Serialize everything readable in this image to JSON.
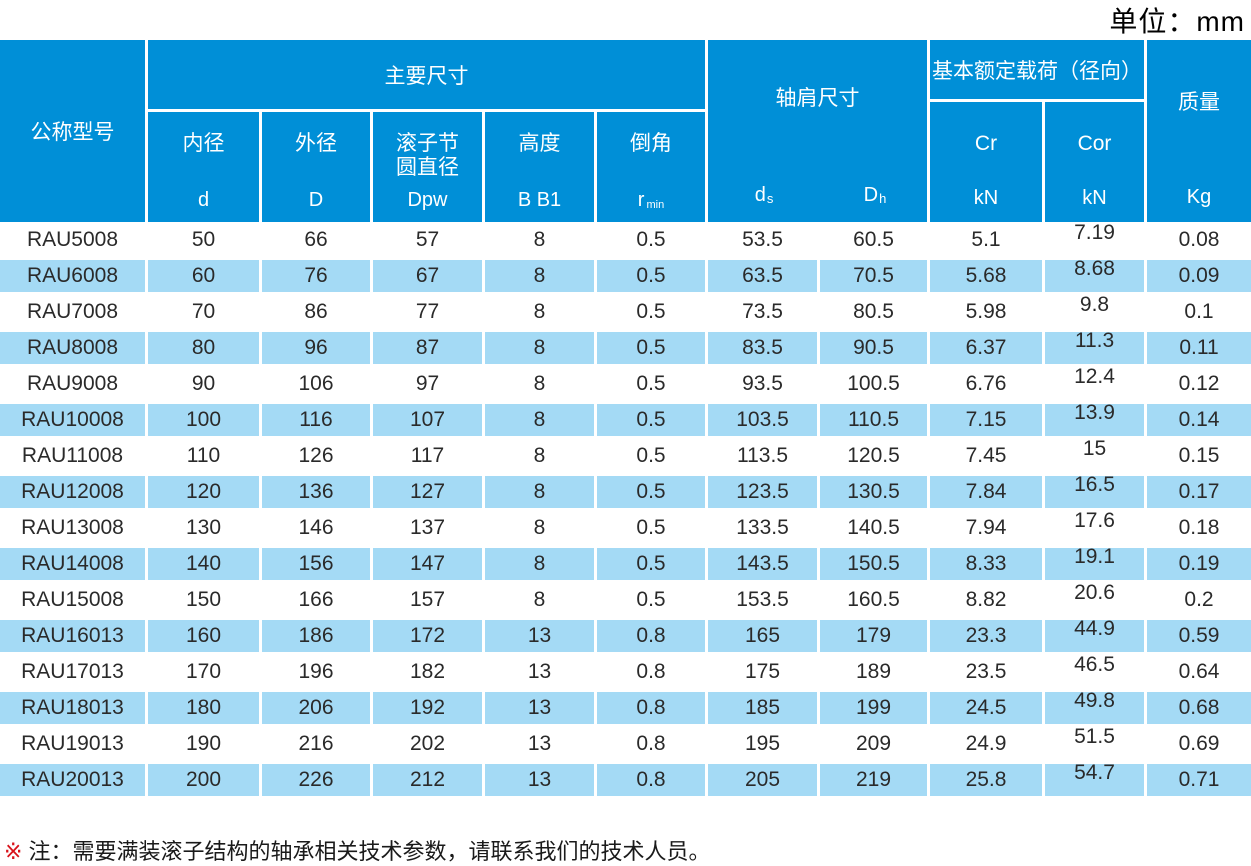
{
  "unit_label": "单位：mm",
  "table": {
    "header": {
      "model": "公称型号",
      "main_dims_group": "主要尺寸",
      "shoulder_group": "轴肩尺寸",
      "load_group": "基本额定载荷（径向）",
      "mass_label": "质量",
      "mass_unit": "Kg",
      "sub": {
        "inner": {
          "label": "内径",
          "unit": "d"
        },
        "outer": {
          "label": "外径",
          "unit": "D"
        },
        "pitch": {
          "label_line1": "滚子节",
          "label_line2": "圆直径",
          "unit": "Dpw"
        },
        "height": {
          "label": "高度",
          "unit": "B B1"
        },
        "chamfer": {
          "label": "倒角",
          "unit_main": "r",
          "unit_sub": "min"
        },
        "ds": {
          "main": "d",
          "sub": "s"
        },
        "dh": {
          "main": "D",
          "sub": "h"
        },
        "cr": {
          "label": "Cr",
          "unit": "kN"
        },
        "cor": {
          "label": "Cor",
          "unit": "kN"
        }
      }
    },
    "rows": [
      [
        "RAU5008",
        "50",
        "66",
        "57",
        "8",
        "0.5",
        "53.5",
        "60.5",
        "5.1",
        "7.19",
        "0.08"
      ],
      [
        "RAU6008",
        "60",
        "76",
        "67",
        "8",
        "0.5",
        "63.5",
        "70.5",
        "5.68",
        "8.68",
        "0.09"
      ],
      [
        "RAU7008",
        "70",
        "86",
        "77",
        "8",
        "0.5",
        "73.5",
        "80.5",
        "5.98",
        "9.8",
        "0.1"
      ],
      [
        "RAU8008",
        "80",
        "96",
        "87",
        "8",
        "0.5",
        "83.5",
        "90.5",
        "6.37",
        "11.3",
        "0.11"
      ],
      [
        "RAU9008",
        "90",
        "106",
        "97",
        "8",
        "0.5",
        "93.5",
        "100.5",
        "6.76",
        "12.4",
        "0.12"
      ],
      [
        "RAU10008",
        "100",
        "116",
        "107",
        "8",
        "0.5",
        "103.5",
        "110.5",
        "7.15",
        "13.9",
        "0.14"
      ],
      [
        "RAU11008",
        "110",
        "126",
        "117",
        "8",
        "0.5",
        "113.5",
        "120.5",
        "7.45",
        "15",
        "0.15"
      ],
      [
        "RAU12008",
        "120",
        "136",
        "127",
        "8",
        "0.5",
        "123.5",
        "130.5",
        "7.84",
        "16.5",
        "0.17"
      ],
      [
        "RAU13008",
        "130",
        "146",
        "137",
        "8",
        "0.5",
        "133.5",
        "140.5",
        "7.94",
        "17.6",
        "0.18"
      ],
      [
        "RAU14008",
        "140",
        "156",
        "147",
        "8",
        "0.5",
        "143.5",
        "150.5",
        "8.33",
        "19.1",
        "0.19"
      ],
      [
        "RAU15008",
        "150",
        "166",
        "157",
        "8",
        "0.5",
        "153.5",
        "160.5",
        "8.82",
        "20.6",
        "0.2"
      ],
      [
        "RAU16013",
        "160",
        "186",
        "172",
        "13",
        "0.8",
        "165",
        "179",
        "23.3",
        "44.9",
        "0.59"
      ],
      [
        "RAU17013",
        "170",
        "196",
        "182",
        "13",
        "0.8",
        "175",
        "189",
        "23.5",
        "46.5",
        "0.64"
      ],
      [
        "RAU18013",
        "180",
        "206",
        "192",
        "13",
        "0.8",
        "185",
        "199",
        "24.5",
        "49.8",
        "0.68"
      ],
      [
        "RAU19013",
        "190",
        "216",
        "202",
        "13",
        "0.8",
        "195",
        "209",
        "24.9",
        "51.5",
        "0.69"
      ],
      [
        "RAU20013",
        "200",
        "226",
        "212",
        "13",
        "0.8",
        "205",
        "219",
        "25.8",
        "54.7",
        "0.71"
      ]
    ]
  },
  "footnote": {
    "marker": "※",
    "text": "注：需要满装滚子结构的轴承相关技术参数，请联系我们的技术人员。"
  },
  "colors": {
    "header_blue": "#008FD7",
    "row_blue": "#A4DAF5",
    "note_red": "#D8121A"
  }
}
